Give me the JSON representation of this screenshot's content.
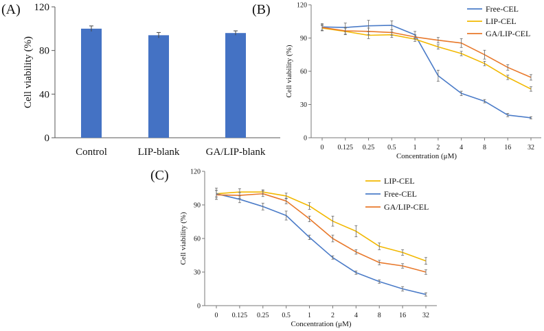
{
  "chart_data": [
    {
      "panel": "(A)",
      "type": "bar",
      "title": "",
      "xlabel": "",
      "ylabel": "Cell viability (%)",
      "ylim": [
        0,
        120
      ],
      "yticks": [
        0,
        40,
        80,
        120
      ],
      "categories": [
        "Control",
        "LIP-blank",
        "GA/LIP-blank"
      ],
      "values": [
        100,
        94,
        96
      ],
      "errors": [
        2.5,
        2.5,
        2
      ],
      "color": "#4472C4"
    },
    {
      "panel": "(B)",
      "type": "line",
      "title": "",
      "xlabel": "Concentration (μM)",
      "ylabel": "Cell viability (%)",
      "ylim": [
        0,
        120
      ],
      "yticks": [
        0,
        30,
        60,
        90,
        120
      ],
      "categories": [
        "0",
        "0.125",
        "0.25",
        "0.5",
        "1",
        "2",
        "4",
        "8",
        "16",
        "32"
      ],
      "legend_position": "top-right",
      "series": [
        {
          "name": "Free-CEL",
          "color": "#4A7BC8",
          "values": [
            100,
            99.5,
            101,
            101.5,
            93,
            56,
            40,
            33,
            20.5,
            18
          ],
          "errors": [
            3,
            4,
            5,
            4,
            3,
            5,
            2,
            1.5,
            1.5,
            1
          ]
        },
        {
          "name": "LIP-CEL",
          "color": "#F2B800",
          "values": [
            99,
            96,
            92.5,
            93,
            89,
            82,
            76,
            67,
            54.5,
            44
          ],
          "errors": [
            2.5,
            3,
            3,
            2.5,
            2,
            2,
            2,
            2,
            2,
            2
          ]
        },
        {
          "name": "GA/LIP-CEL",
          "color": "#E8782A",
          "values": [
            99.5,
            96.5,
            96,
            95,
            91,
            88,
            85.5,
            75,
            63.5,
            54.5
          ],
          "errors": [
            2.5,
            3,
            3,
            2.5,
            2,
            2.5,
            4,
            4,
            2.5,
            2.5
          ]
        }
      ]
    },
    {
      "panel": "(C)",
      "type": "line",
      "title": "",
      "xlabel": "Concentration (μM)",
      "ylabel": "Cell viability (%)",
      "ylim": [
        0,
        120
      ],
      "yticks": [
        0,
        30,
        60,
        90,
        120
      ],
      "categories": [
        "0",
        "0.125",
        "0.25",
        "0.5",
        "1",
        "2",
        "4",
        "8",
        "16",
        "32"
      ],
      "legend_position": "top-right",
      "series": [
        {
          "name": "LIP-CEL",
          "color": "#F2B800",
          "values": [
            100,
            101.5,
            101.5,
            98,
            89,
            75.5,
            66.5,
            53,
            47.5,
            40
          ],
          "errors": [
            3,
            3,
            2,
            2.5,
            3,
            4.5,
            5,
            3,
            2.5,
            3
          ]
        },
        {
          "name": "Free-CEL",
          "color": "#4A7BC8",
          "values": [
            100,
            95,
            88.5,
            80.5,
            61,
            43,
            29.5,
            21.5,
            15,
            10
          ],
          "errors": [
            5,
            3,
            3,
            4,
            2,
            1.5,
            1.5,
            1.5,
            2,
            1.5
          ]
        },
        {
          "name": "GA/LIP-CEL",
          "color": "#E8782A",
          "values": [
            99,
            98.5,
            100,
            93.5,
            77.5,
            60,
            48,
            38.5,
            35.5,
            30
          ],
          "errors": [
            4,
            2.5,
            2.5,
            2.5,
            2.5,
            3,
            2,
            2,
            2,
            2
          ]
        }
      ]
    }
  ]
}
